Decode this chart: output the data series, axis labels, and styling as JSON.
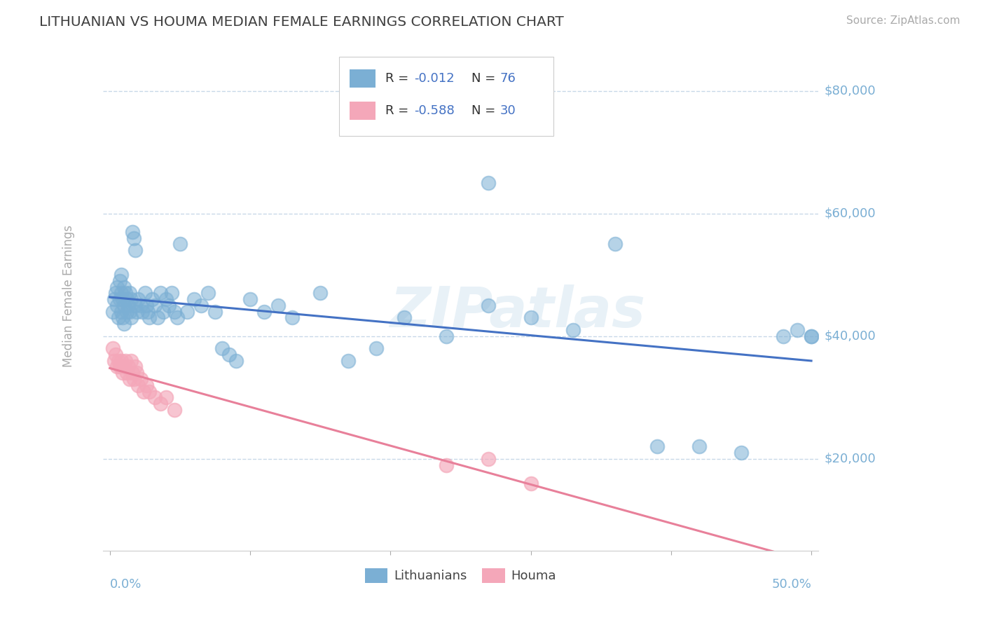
{
  "title": "LITHUANIAN VS HOUMA MEDIAN FEMALE EARNINGS CORRELATION CHART",
  "source": "Source: ZipAtlas.com",
  "ylabel": "Median Female Earnings",
  "blue_R": -0.012,
  "blue_N": 76,
  "pink_R": -0.588,
  "pink_N": 30,
  "xlim": [
    -0.005,
    0.505
  ],
  "ylim": [
    5000,
    88000
  ],
  "yticks": [
    20000,
    40000,
    60000,
    80000
  ],
  "ytick_labels": [
    "$20,000",
    "$40,000",
    "$60,000",
    "$80,000"
  ],
  "xtick_labels_ends": [
    "0.0%",
    "50.0%"
  ],
  "blue_color": "#7bafd4",
  "pink_color": "#f4a7b9",
  "blue_line_color": "#4472c4",
  "pink_line_color": "#e8809a",
  "grid_color": "#c8d8e8",
  "title_color": "#404040",
  "axis_label_color": "#7bafd4",
  "watermark": "ZIPatlas",
  "background_color": "#ffffff",
  "blue_scatter_x": [
    0.002,
    0.003,
    0.004,
    0.005,
    0.005,
    0.006,
    0.007,
    0.007,
    0.008,
    0.008,
    0.008,
    0.009,
    0.009,
    0.01,
    0.01,
    0.01,
    0.011,
    0.012,
    0.012,
    0.013,
    0.014,
    0.014,
    0.015,
    0.015,
    0.016,
    0.017,
    0.018,
    0.018,
    0.019,
    0.02,
    0.022,
    0.023,
    0.025,
    0.026,
    0.027,
    0.028,
    0.03,
    0.032,
    0.034,
    0.036,
    0.038,
    0.04,
    0.042,
    0.044,
    0.046,
    0.048,
    0.05,
    0.055,
    0.06,
    0.065,
    0.07,
    0.075,
    0.08,
    0.085,
    0.09,
    0.1,
    0.11,
    0.12,
    0.13,
    0.15,
    0.17,
    0.19,
    0.21,
    0.24,
    0.27,
    0.3,
    0.33,
    0.36,
    0.39,
    0.42,
    0.45,
    0.48,
    0.49,
    0.5,
    0.5,
    0.27
  ],
  "blue_scatter_y": [
    44000,
    46000,
    47000,
    45000,
    48000,
    43000,
    46000,
    49000,
    44000,
    47000,
    50000,
    43000,
    46000,
    45000,
    48000,
    42000,
    47000,
    44000,
    46000,
    45000,
    44000,
    47000,
    43000,
    46000,
    57000,
    56000,
    54000,
    45000,
    44000,
    46000,
    45000,
    44000,
    47000,
    45000,
    44000,
    43000,
    46000,
    45000,
    43000,
    47000,
    44000,
    46000,
    45000,
    47000,
    44000,
    43000,
    55000,
    44000,
    46000,
    45000,
    47000,
    44000,
    38000,
    37000,
    36000,
    46000,
    44000,
    45000,
    43000,
    47000,
    36000,
    38000,
    43000,
    40000,
    45000,
    43000,
    41000,
    55000,
    22000,
    22000,
    21000,
    40000,
    41000,
    40000,
    40000,
    65000
  ],
  "pink_scatter_x": [
    0.002,
    0.003,
    0.004,
    0.005,
    0.006,
    0.007,
    0.008,
    0.009,
    0.01,
    0.011,
    0.012,
    0.013,
    0.014,
    0.015,
    0.016,
    0.017,
    0.018,
    0.019,
    0.02,
    0.022,
    0.024,
    0.026,
    0.028,
    0.032,
    0.036,
    0.04,
    0.046,
    0.24,
    0.27,
    0.3
  ],
  "pink_scatter_y": [
    38000,
    36000,
    37000,
    35000,
    36000,
    35000,
    36000,
    34000,
    35000,
    36000,
    34000,
    35000,
    33000,
    36000,
    34000,
    33000,
    35000,
    34000,
    32000,
    33000,
    31000,
    32000,
    31000,
    30000,
    29000,
    30000,
    28000,
    19000,
    20000,
    16000
  ]
}
